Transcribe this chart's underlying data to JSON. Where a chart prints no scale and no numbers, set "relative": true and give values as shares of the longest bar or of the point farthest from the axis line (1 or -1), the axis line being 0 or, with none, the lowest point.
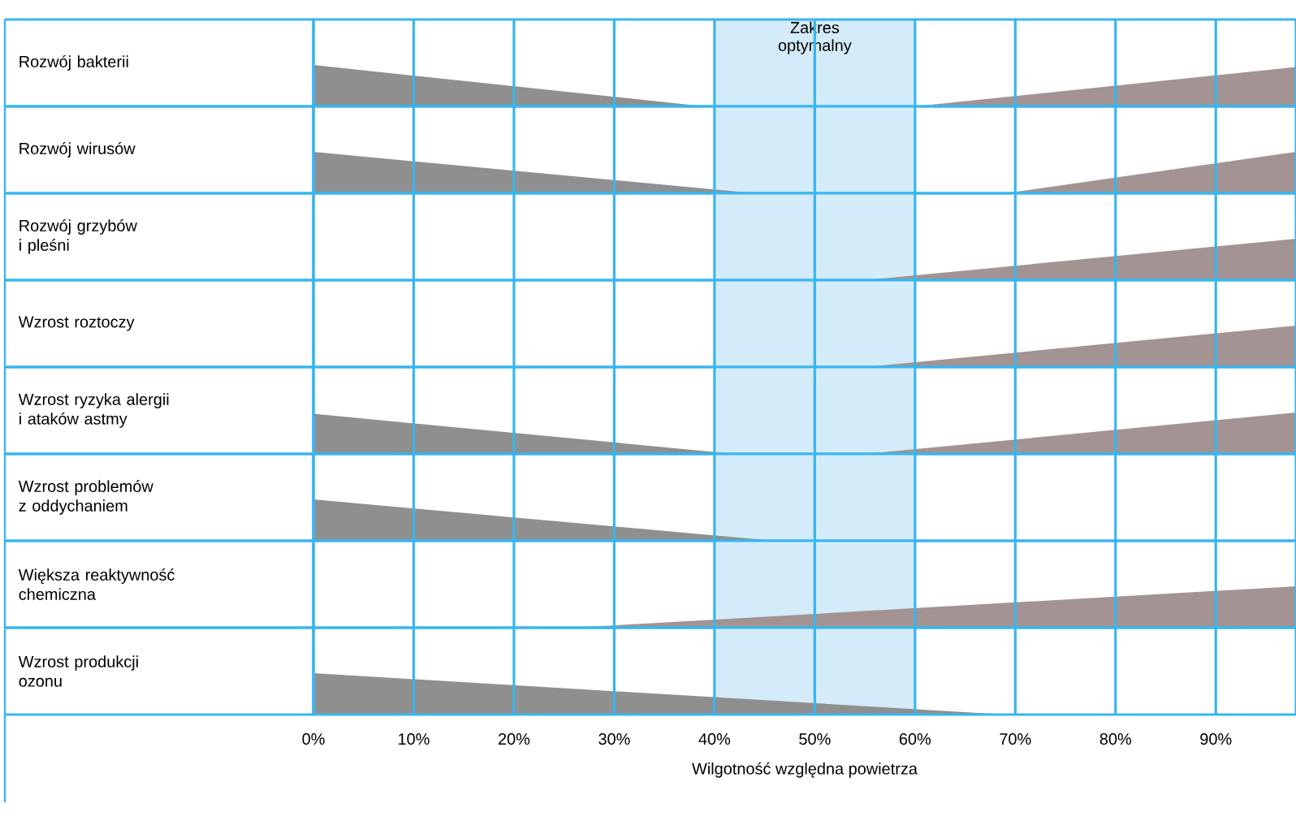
{
  "chart_data": [
    {
      "type": "area",
      "ylabel": "Rozwój bakterii",
      "relative": true,
      "xlim": [
        0,
        98
      ],
      "xticks": [
        0,
        10,
        20,
        30,
        40,
        50,
        60,
        70,
        80,
        90
      ],
      "tick_labels": false,
      "grid": "x",
      "bands": [
        {
          "axis": "x",
          "from": 40,
          "to": 60,
          "label": "Zakres optymalny",
          "color": "#d4ebf9"
        }
      ],
      "series": [
        {
          "color": "#8f8f8f",
          "x": [
            0,
            39
          ],
          "values": [
            1,
            0
          ]
        },
        {
          "color": "#a39393",
          "x": [
            60,
            98
          ],
          "values": [
            0,
            0.95
          ]
        }
      ]
    },
    {
      "type": "area",
      "ylabel": "Rozwój wirusów",
      "relative": true,
      "xlim": [
        0,
        98
      ],
      "xticks": [
        0,
        10,
        20,
        30,
        40,
        50,
        60,
        70,
        80,
        90
      ],
      "tick_labels": false,
      "grid": "x",
      "bands": [
        {
          "axis": "x",
          "from": 40,
          "to": 60,
          "color": "#d4ebf9"
        }
      ],
      "series": [
        {
          "color": "#8f8f8f",
          "x": [
            0,
            44
          ],
          "values": [
            1,
            0
          ]
        },
        {
          "color": "#a39393",
          "x": [
            69,
            98
          ],
          "values": [
            0,
            1
          ]
        }
      ]
    },
    {
      "type": "area",
      "ylabel": "Rozwój grzybów\ni pleśni",
      "relative": true,
      "xlim": [
        0,
        98
      ],
      "xticks": [
        0,
        10,
        20,
        30,
        40,
        50,
        60,
        70,
        80,
        90
      ],
      "tick_labels": false,
      "grid": "x",
      "bands": [
        {
          "axis": "x",
          "from": 40,
          "to": 60,
          "color": "#d4ebf9"
        }
      ],
      "series": [
        {
          "color": "#a39393",
          "x": [
            55,
            98
          ],
          "values": [
            0,
            1
          ]
        }
      ]
    },
    {
      "type": "area",
      "ylabel": "Wzrost roztoczy",
      "relative": true,
      "xlim": [
        0,
        98
      ],
      "xticks": [
        0,
        10,
        20,
        30,
        40,
        50,
        60,
        70,
        80,
        90
      ],
      "tick_labels": false,
      "grid": "x",
      "bands": [
        {
          "axis": "x",
          "from": 40,
          "to": 60,
          "color": "#d4ebf9"
        }
      ],
      "series": [
        {
          "color": "#a39393",
          "x": [
            55,
            98
          ],
          "values": [
            0,
            1
          ]
        }
      ]
    },
    {
      "type": "area",
      "ylabel": "Wzrost ryzyka alergii\ni ataków astmy",
      "relative": true,
      "xlim": [
        0,
        98
      ],
      "xticks": [
        0,
        10,
        20,
        30,
        40,
        50,
        60,
        70,
        80,
        90
      ],
      "tick_labels": false,
      "grid": "x",
      "bands": [
        {
          "axis": "x",
          "from": 40,
          "to": 60,
          "color": "#d4ebf9"
        }
      ],
      "series": [
        {
          "color": "#8f8f8f",
          "x": [
            0,
            42
          ],
          "values": [
            0.97,
            0
          ]
        },
        {
          "color": "#a39393",
          "x": [
            55,
            98
          ],
          "values": [
            0,
            1
          ]
        }
      ]
    },
    {
      "type": "area",
      "ylabel": "Wzrost problemów\nz oddychaniem",
      "relative": true,
      "xlim": [
        0,
        98
      ],
      "xticks": [
        0,
        10,
        20,
        30,
        40,
        50,
        60,
        70,
        80,
        90
      ],
      "tick_labels": false,
      "grid": "x",
      "bands": [
        {
          "axis": "x",
          "from": 40,
          "to": 60,
          "color": "#d4ebf9"
        }
      ],
      "series": [
        {
          "color": "#8f8f8f",
          "x": [
            0,
            46
          ],
          "values": [
            1,
            0
          ]
        }
      ]
    },
    {
      "type": "area",
      "ylabel": "Większa reaktywność\nchemiczna",
      "relative": true,
      "xlim": [
        0,
        98
      ],
      "xticks": [
        0,
        10,
        20,
        30,
        40,
        50,
        60,
        70,
        80,
        90
      ],
      "tick_labels": false,
      "grid": "x",
      "bands": [
        {
          "axis": "x",
          "from": 40,
          "to": 60,
          "color": "#d4ebf9"
        }
      ],
      "series": [
        {
          "color": "#a39393",
          "x": [
            26,
            98
          ],
          "values": [
            0,
            1
          ]
        }
      ]
    },
    {
      "type": "area",
      "ylabel": "Wzrost produkcji\nozonu",
      "relative": true,
      "xlim": [
        0,
        98
      ],
      "xlabel": "Wilgotność względna powietrza",
      "grid": "x",
      "bands": [
        {
          "axis": "x",
          "from": 40,
          "to": 60,
          "color": "#d4ebf9"
        }
      ],
      "xticks": [
        {
          "value": 0,
          "label": "0%"
        },
        {
          "value": 10,
          "label": "10%"
        },
        {
          "value": 20,
          "label": "20%"
        },
        {
          "value": 30,
          "label": "30%"
        },
        {
          "value": 40,
          "label": "40%"
        },
        {
          "value": 50,
          "label": "50%"
        },
        {
          "value": 60,
          "label": "60%"
        },
        {
          "value": 70,
          "label": "70%"
        },
        {
          "value": 80,
          "label": "80%"
        },
        {
          "value": 90,
          "label": "90%"
        }
      ],
      "series": [
        {
          "color": "#8f8f8f",
          "x": [
            0,
            69
          ],
          "values": [
            1,
            0
          ]
        }
      ]
    }
  ]
}
